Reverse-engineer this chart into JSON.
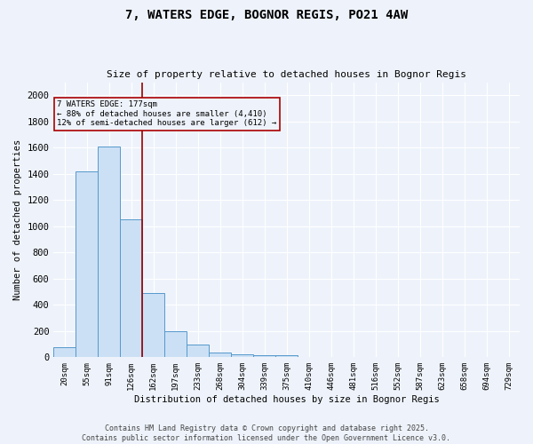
{
  "title_line1": "7, WATERS EDGE, BOGNOR REGIS, PO21 4AW",
  "title_line2": "Size of property relative to detached houses in Bognor Regis",
  "xlabel": "Distribution of detached houses by size in Bognor Regis",
  "ylabel": "Number of detached properties",
  "bin_labels": [
    "20sqm",
    "55sqm",
    "91sqm",
    "126sqm",
    "162sqm",
    "197sqm",
    "233sqm",
    "268sqm",
    "304sqm",
    "339sqm",
    "375sqm",
    "410sqm",
    "446sqm",
    "481sqm",
    "516sqm",
    "552sqm",
    "587sqm",
    "623sqm",
    "658sqm",
    "694sqm",
    "729sqm"
  ],
  "bar_values": [
    80,
    1420,
    1610,
    1050,
    490,
    200,
    100,
    35,
    25,
    15,
    15,
    0,
    0,
    0,
    0,
    0,
    0,
    0,
    0,
    0,
    0
  ],
  "bar_color": "#cce0f5",
  "bar_edge_color": "#5599cc",
  "vline_x": 3.5,
  "vline_color": "#990000",
  "annotation_text": "7 WATERS EDGE: 177sqm\n← 88% of detached houses are smaller (4,410)\n12% of semi-detached houses are larger (612) →",
  "ylim": [
    0,
    2100
  ],
  "yticks": [
    0,
    200,
    400,
    600,
    800,
    1000,
    1200,
    1400,
    1600,
    1800,
    2000
  ],
  "background_color": "#eef3fb",
  "grid_color": "#d8e4f0",
  "footer_line1": "Contains HM Land Registry data © Crown copyright and database right 2025.",
  "footer_line2": "Contains public sector information licensed under the Open Government Licence v3.0."
}
